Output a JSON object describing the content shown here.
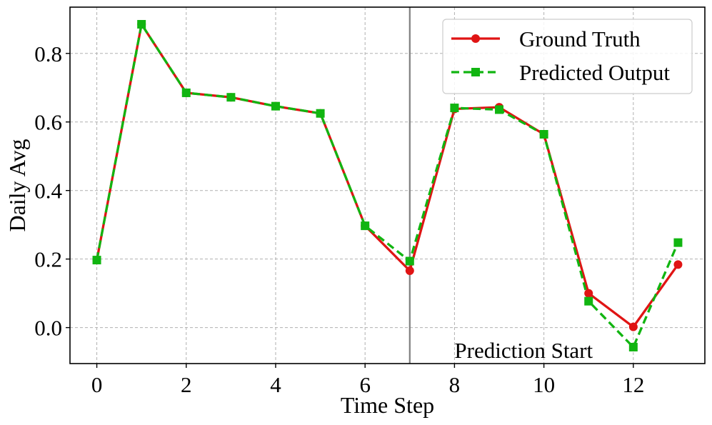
{
  "chart_data": {
    "type": "line",
    "xlabel": "Time Step",
    "ylabel": "Daily Avg",
    "xlim": [
      -0.6,
      13.6
    ],
    "ylim": [
      -0.105,
      0.935
    ],
    "xticks": [
      0,
      2,
      4,
      6,
      8,
      10,
      12
    ],
    "xtick_labels": [
      "0",
      "2",
      "4",
      "6",
      "8",
      "10",
      "12"
    ],
    "yticks": [
      0.0,
      0.2,
      0.4,
      0.6,
      0.8
    ],
    "ytick_labels": [
      "0.0",
      "0.2",
      "0.4",
      "0.6",
      "0.8"
    ],
    "grid": true,
    "legend_position": "top-right",
    "x": [
      0,
      1,
      2,
      3,
      4,
      5,
      6,
      7,
      8,
      9,
      10,
      11,
      12,
      13
    ],
    "series": [
      {
        "name": "Ground Truth",
        "color": "#e01414",
        "style": "solid",
        "marker": "circle",
        "values": [
          0.197,
          0.885,
          0.685,
          0.672,
          0.646,
          0.625,
          0.297,
          0.166,
          0.638,
          0.643,
          0.564,
          0.1,
          0.002,
          0.184
        ]
      },
      {
        "name": "Predicted Output",
        "color": "#11b511",
        "style": "dashed",
        "marker": "square",
        "values": [
          0.197,
          0.885,
          0.685,
          0.672,
          0.646,
          0.625,
          0.297,
          0.194,
          0.641,
          0.636,
          0.564,
          0.077,
          -0.057,
          0.248
        ]
      }
    ],
    "vline": {
      "x": 7,
      "color": "#808080"
    },
    "annotation": {
      "text": "Prediction Start",
      "x": 8,
      "y": -0.065
    }
  }
}
